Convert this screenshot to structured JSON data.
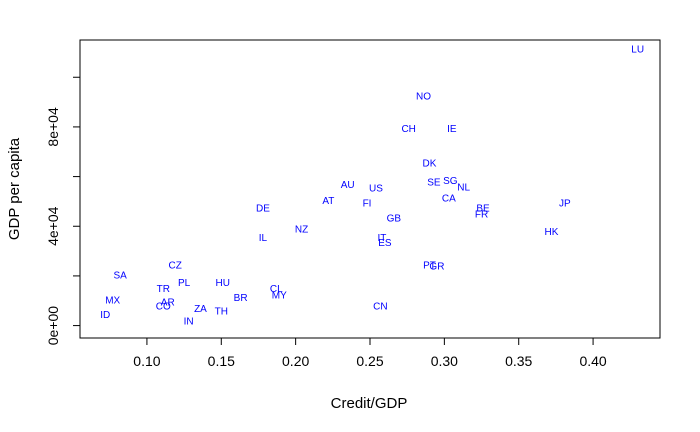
{
  "chart_data": {
    "type": "scatter",
    "xlabel": "Credit/GDP",
    "ylabel": "GDP per capita",
    "xlim": [
      0.055,
      0.445
    ],
    "ylim": [
      -5000,
      115000
    ],
    "x_ticks": [
      0.1,
      0.15,
      0.2,
      0.25,
      0.3,
      0.35,
      0.4
    ],
    "x_tick_labels": [
      "0.10",
      "0.15",
      "0.20",
      "0.25",
      "0.30",
      "0.35",
      "0.40"
    ],
    "y_ticks": [
      0,
      20000,
      40000,
      60000,
      80000,
      100000
    ],
    "y_tick_labels": [
      "0e+00",
      "",
      "4e+04",
      "",
      "8e+04",
      ""
    ],
    "grid": false,
    "point_color": "#0000ff",
    "points": [
      {
        "label": "LU",
        "x": 0.43,
        "y": 111000
      },
      {
        "label": "NO",
        "x": 0.286,
        "y": 92000
      },
      {
        "label": "CH",
        "x": 0.276,
        "y": 79000
      },
      {
        "label": "IE",
        "x": 0.305,
        "y": 79000
      },
      {
        "label": "DK",
        "x": 0.29,
        "y": 65000
      },
      {
        "label": "SE",
        "x": 0.293,
        "y": 57500
      },
      {
        "label": "SG",
        "x": 0.304,
        "y": 58000
      },
      {
        "label": "NL",
        "x": 0.313,
        "y": 55500
      },
      {
        "label": "AU",
        "x": 0.235,
        "y": 56500
      },
      {
        "label": "US",
        "x": 0.254,
        "y": 55000
      },
      {
        "label": "CA",
        "x": 0.303,
        "y": 51000
      },
      {
        "label": "AT",
        "x": 0.222,
        "y": 50000
      },
      {
        "label": "FI",
        "x": 0.248,
        "y": 49000
      },
      {
        "label": "BE",
        "x": 0.326,
        "y": 47000
      },
      {
        "label": "FR",
        "x": 0.325,
        "y": 44500
      },
      {
        "label": "JP",
        "x": 0.381,
        "y": 49000
      },
      {
        "label": "DE",
        "x": 0.178,
        "y": 47000
      },
      {
        "label": "GB",
        "x": 0.266,
        "y": 43000
      },
      {
        "label": "NZ",
        "x": 0.204,
        "y": 38500
      },
      {
        "label": "HK",
        "x": 0.372,
        "y": 37500
      },
      {
        "label": "IL",
        "x": 0.178,
        "y": 35000
      },
      {
        "label": "IT",
        "x": 0.258,
        "y": 35000
      },
      {
        "label": "ES",
        "x": 0.26,
        "y": 33000
      },
      {
        "label": "PT",
        "x": 0.29,
        "y": 24000
      },
      {
        "label": "GR",
        "x": 0.295,
        "y": 23500
      },
      {
        "label": "SA",
        "x": 0.082,
        "y": 20000
      },
      {
        "label": "CZ",
        "x": 0.119,
        "y": 24000
      },
      {
        "label": "HU",
        "x": 0.151,
        "y": 17000
      },
      {
        "label": "PL",
        "x": 0.125,
        "y": 17000
      },
      {
        "label": "TR",
        "x": 0.111,
        "y": 14500
      },
      {
        "label": "CL",
        "x": 0.187,
        "y": 14500
      },
      {
        "label": "MY",
        "x": 0.189,
        "y": 12000
      },
      {
        "label": "BR",
        "x": 0.163,
        "y": 11000
      },
      {
        "label": "MX",
        "x": 0.077,
        "y": 10000
      },
      {
        "label": "AR",
        "x": 0.114,
        "y": 9000
      },
      {
        "label": "CO",
        "x": 0.111,
        "y": 7500
      },
      {
        "label": "ZA",
        "x": 0.136,
        "y": 6500
      },
      {
        "label": "TH",
        "x": 0.15,
        "y": 5500
      },
      {
        "label": "CN",
        "x": 0.257,
        "y": 7500
      },
      {
        "label": "ID",
        "x": 0.072,
        "y": 4000
      },
      {
        "label": "IN",
        "x": 0.128,
        "y": 1500
      }
    ]
  }
}
